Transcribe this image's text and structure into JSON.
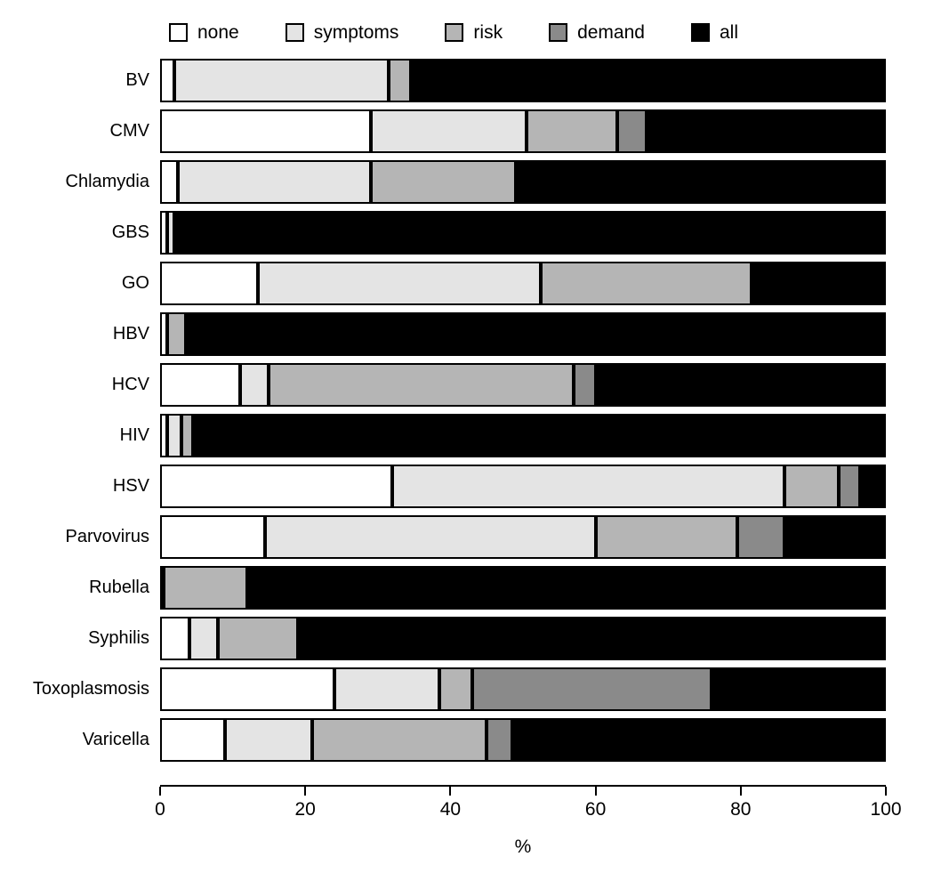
{
  "chart_data": {
    "type": "bar",
    "orientation": "horizontal",
    "stacked": true,
    "title": "",
    "xlabel": "%",
    "xlim": [
      0,
      100
    ],
    "x_ticks": [
      0,
      20,
      40,
      60,
      80,
      100
    ],
    "grid": false,
    "legend_position": "top",
    "categories": [
      "BV",
      "CMV",
      "Chlamydia",
      "GBS",
      "GO",
      "HBV",
      "HCV",
      "HIV",
      "HSV",
      "Parvovirus",
      "Rubella",
      "Syphilis",
      "Toxoplasmosis",
      "Varicella"
    ],
    "series": [
      {
        "name": "none",
        "color": "#ffffff",
        "values": [
          2,
          29,
          2.5,
          1,
          13.5,
          1,
          11,
          1,
          32,
          14.5,
          0.5,
          4,
          24,
          9
        ]
      },
      {
        "name": "symptoms",
        "color": "#e4e4e4",
        "values": [
          29.5,
          21.5,
          26.5,
          1,
          39,
          0,
          4,
          2,
          54,
          45.5,
          0,
          4,
          14.5,
          12
        ]
      },
      {
        "name": "risk",
        "color": "#b5b5b5",
        "values": [
          3,
          12.5,
          20,
          0,
          29,
          2.5,
          42,
          1.5,
          7.5,
          19.5,
          11.5,
          11,
          4.5,
          24
        ]
      },
      {
        "name": "demand",
        "color": "#8a8a8a",
        "values": [
          0,
          4,
          0.5,
          0,
          0.5,
          0,
          3,
          0,
          3,
          6.5,
          0,
          0.5,
          33,
          3.5
        ]
      },
      {
        "name": "all",
        "color": "#000000",
        "values": [
          65.5,
          33,
          50.5,
          98,
          18,
          96.5,
          40,
          95.5,
          3.5,
          14,
          88,
          80.5,
          24,
          51.5
        ]
      }
    ],
    "colors": {
      "none": "#ffffff",
      "symptoms": "#e4e4e4",
      "risk": "#b5b5b5",
      "demand": "#8a8a8a",
      "all": "#000000",
      "border": "#000000"
    }
  }
}
